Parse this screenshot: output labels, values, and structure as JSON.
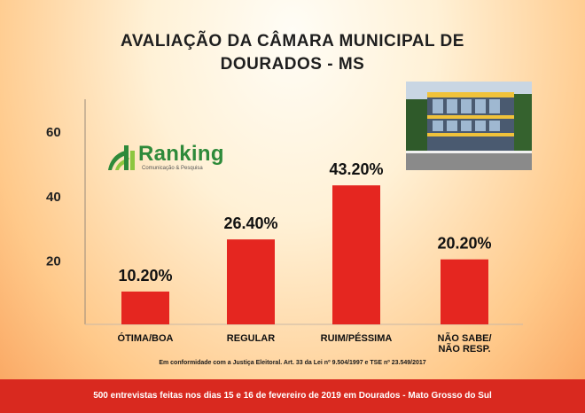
{
  "title_line1": "AVALIAÇÃO DA CÂMARA MUNICIPAL DE",
  "title_line2": "DOURADOS - MS",
  "logo": {
    "word": "Ranking",
    "sub": "Comunicação & Pesquisa"
  },
  "note": "Em conformidade com a Justiça Eleitoral. Art. 33 da Lei nº 9.504/1997 e TSE nº 23.549/2017",
  "footer": "500 entrevistas feitas nos dias 15 e 16 de fevereiro de 2019 em Dourados - Mato Grosso do Sul",
  "colors": {
    "bar": "#e52620",
    "footer": "#d9291f"
  },
  "chart_data": {
    "type": "bar",
    "categories": [
      "ÓTIMA/BOA",
      "REGULAR",
      "RUIM/PÉSSIMA",
      "NÃO SABE/\nNÃO RESP."
    ],
    "values": [
      10.2,
      26.4,
      43.2,
      20.2
    ],
    "data_labels": [
      "10.20%",
      "26.40%",
      "43.20%",
      "20.20%"
    ],
    "yticks": [
      20,
      40,
      60
    ],
    "ylim": [
      0,
      65
    ],
    "grid": false
  }
}
